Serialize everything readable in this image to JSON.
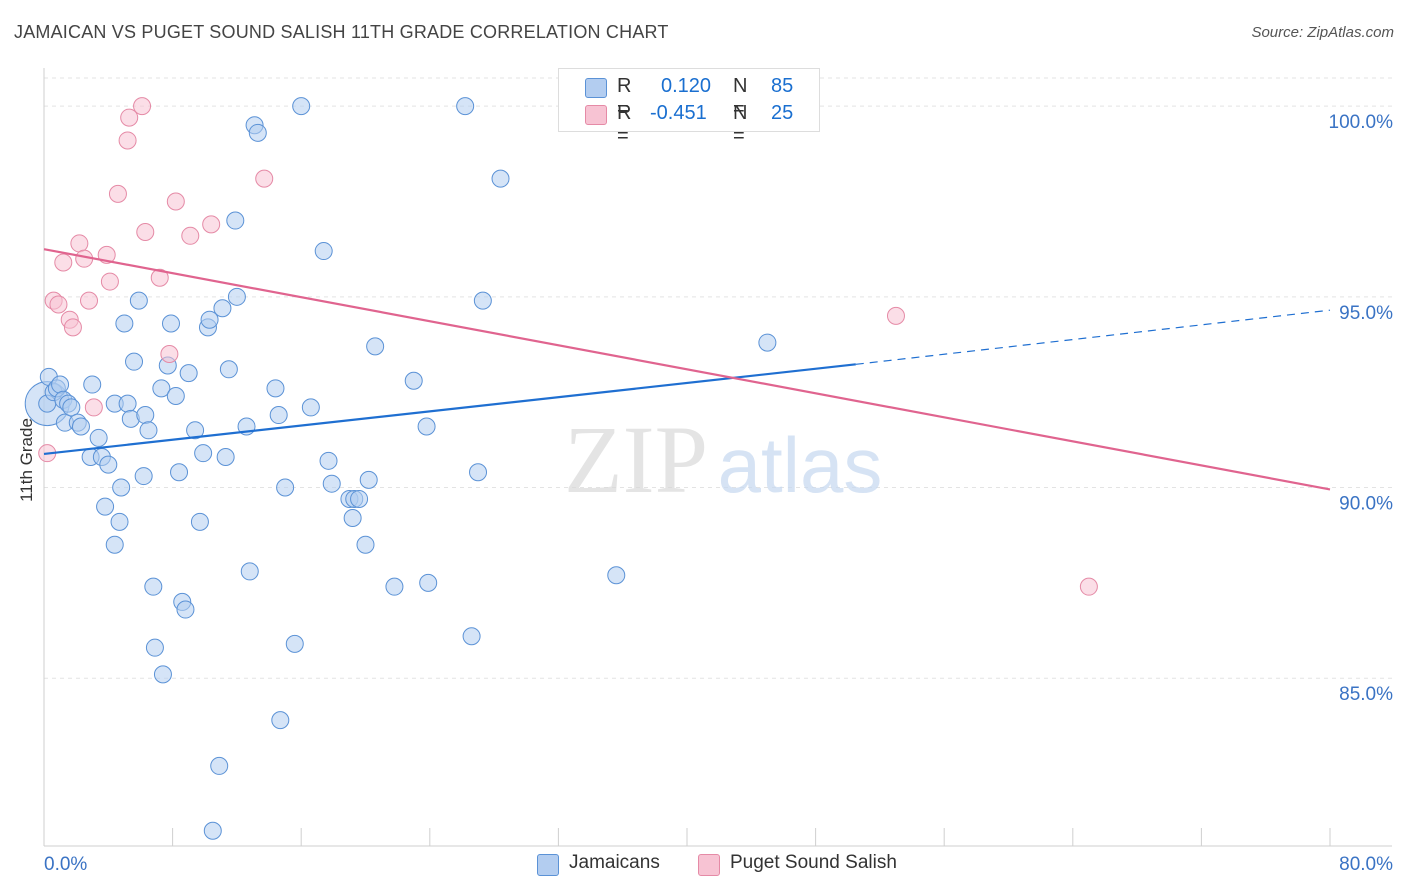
{
  "header": {
    "title": "JAMAICAN VS PUGET SOUND SALISH 11TH GRADE CORRELATION CHART",
    "source": "Source: ZipAtlas.com"
  },
  "colors": {
    "blue_fill": "#b3cdf0",
    "blue_stroke": "#5b92d6",
    "blue_line": "#1f6fd1",
    "pink_fill": "#f7c3d3",
    "pink_stroke": "#e58aa6",
    "pink_line": "#e0648f",
    "tick_text": "#3a73c4",
    "grid": "#e3e3e3"
  },
  "legend": {
    "rows": [
      {
        "r_label": "R =",
        "r_value": "0.120",
        "n_label": "N =",
        "n_value": "85"
      },
      {
        "r_label": "R =",
        "r_value": "-0.451",
        "n_label": "N =",
        "n_value": "25"
      }
    ]
  },
  "bottom_legend": [
    "Jamaicans",
    "Puget Sound Salish"
  ],
  "watermark": {
    "zip": "ZIP",
    "atlas": "atlas"
  },
  "chart_data": {
    "type": "scatter",
    "title": "JAMAICAN VS PUGET SOUND SALISH 11TH GRADE CORRELATION CHART",
    "ylabel": "11th Grade",
    "xlabel": "",
    "xlim": [
      0,
      80
    ],
    "ylim": [
      80.6,
      101.0
    ],
    "x_tick_labels": [
      {
        "value": 0,
        "label": "0.0%"
      },
      {
        "value": 80,
        "label": "80.0%"
      }
    ],
    "y_tick_labels": [
      {
        "value": 100,
        "label": "100.0%"
      },
      {
        "value": 95,
        "label": "95.0%"
      },
      {
        "value": 90,
        "label": "90.0%"
      },
      {
        "value": 85,
        "label": "85.0%"
      }
    ],
    "x_minor_ticks": [
      0,
      8,
      16,
      24,
      32,
      40,
      48,
      56,
      64,
      72,
      80
    ],
    "grid": true,
    "legend_placement": "top-center",
    "series": [
      {
        "name": "Jamaicans",
        "R": 0.12,
        "N": 85,
        "trend": {
          "x0": 0,
          "y0": 90.88,
          "x1": 50.5,
          "y1": 93.23,
          "dashed_to_x": 80,
          "dashed_to_y": 94.65
        },
        "points": [
          [
            0.2,
            92.2
          ],
          [
            0.3,
            92.9
          ],
          [
            0.6,
            92.5
          ],
          [
            0.8,
            92.6
          ],
          [
            1.0,
            92.7
          ],
          [
            1.2,
            92.3
          ],
          [
            1.3,
            91.7
          ],
          [
            1.5,
            92.2
          ],
          [
            1.7,
            92.1
          ],
          [
            2.1,
            91.7
          ],
          [
            2.3,
            91.6
          ],
          [
            2.9,
            90.8
          ],
          [
            3.0,
            92.7
          ],
          [
            3.4,
            91.3
          ],
          [
            3.6,
            90.8
          ],
          [
            3.8,
            89.5
          ],
          [
            4.0,
            90.6
          ],
          [
            4.4,
            88.5
          ],
          [
            4.4,
            92.2
          ],
          [
            4.7,
            89.1
          ],
          [
            4.8,
            90.0
          ],
          [
            5.0,
            94.3
          ],
          [
            5.2,
            92.2
          ],
          [
            5.4,
            91.8
          ],
          [
            5.6,
            93.3
          ],
          [
            5.9,
            94.9
          ],
          [
            6.2,
            90.3
          ],
          [
            6.3,
            91.9
          ],
          [
            6.5,
            91.5
          ],
          [
            6.8,
            87.4
          ],
          [
            6.9,
            85.8
          ],
          [
            7.3,
            92.6
          ],
          [
            7.4,
            85.1
          ],
          [
            7.7,
            93.2
          ],
          [
            7.9,
            94.3
          ],
          [
            8.2,
            92.4
          ],
          [
            8.4,
            90.4
          ],
          [
            8.6,
            87.0
          ],
          [
            8.8,
            86.8
          ],
          [
            9.0,
            93.0
          ],
          [
            9.4,
            91.5
          ],
          [
            9.7,
            89.1
          ],
          [
            9.9,
            90.9
          ],
          [
            10.2,
            94.2
          ],
          [
            10.3,
            94.4
          ],
          [
            10.5,
            81.0
          ],
          [
            10.9,
            82.7
          ],
          [
            11.1,
            94.7
          ],
          [
            11.3,
            90.8
          ],
          [
            11.5,
            93.1
          ],
          [
            11.9,
            97.0
          ],
          [
            12.0,
            95.0
          ],
          [
            12.6,
            91.6
          ],
          [
            12.8,
            87.8
          ],
          [
            13.1,
            99.5
          ],
          [
            13.3,
            99.3
          ],
          [
            14.4,
            92.6
          ],
          [
            14.6,
            91.9
          ],
          [
            14.7,
            83.9
          ],
          [
            15.0,
            90.0
          ],
          [
            15.6,
            85.9
          ],
          [
            16.0,
            100.0
          ],
          [
            16.6,
            92.1
          ],
          [
            17.4,
            96.2
          ],
          [
            17.7,
            90.7
          ],
          [
            17.9,
            90.1
          ],
          [
            19.0,
            89.7
          ],
          [
            19.2,
            89.2
          ],
          [
            19.3,
            89.7
          ],
          [
            19.6,
            89.7
          ],
          [
            20.0,
            88.5
          ],
          [
            20.2,
            90.2
          ],
          [
            20.6,
            93.7
          ],
          [
            21.8,
            87.4
          ],
          [
            23.0,
            92.8
          ],
          [
            23.8,
            91.6
          ],
          [
            23.9,
            87.5
          ],
          [
            26.2,
            100.0
          ],
          [
            26.6,
            86.1
          ],
          [
            27.0,
            90.4
          ],
          [
            27.3,
            94.9
          ],
          [
            28.4,
            98.1
          ],
          [
            35.6,
            87.7
          ],
          [
            42.6,
            100.0
          ],
          [
            45.0,
            93.8
          ]
        ]
      },
      {
        "name": "Puget Sound Salish",
        "R": -0.451,
        "N": 25,
        "trend": {
          "x0": 0,
          "y0": 96.25,
          "x1": 80,
          "y1": 89.95
        },
        "points": [
          [
            0.2,
            90.9
          ],
          [
            0.6,
            94.9
          ],
          [
            0.9,
            94.8
          ],
          [
            1.2,
            95.9
          ],
          [
            1.6,
            94.4
          ],
          [
            1.8,
            94.2
          ],
          [
            2.2,
            96.4
          ],
          [
            2.5,
            96.0
          ],
          [
            2.8,
            94.9
          ],
          [
            3.1,
            92.1
          ],
          [
            3.9,
            96.1
          ],
          [
            4.1,
            95.4
          ],
          [
            4.6,
            97.7
          ],
          [
            5.2,
            99.1
          ],
          [
            5.3,
            99.7
          ],
          [
            6.1,
            100.0
          ],
          [
            6.3,
            96.7
          ],
          [
            7.2,
            95.5
          ],
          [
            7.8,
            93.5
          ],
          [
            8.2,
            97.5
          ],
          [
            9.1,
            96.6
          ],
          [
            10.4,
            96.9
          ],
          [
            13.7,
            98.1
          ],
          [
            53.0,
            94.5
          ],
          [
            65.0,
            87.4
          ]
        ]
      }
    ]
  }
}
